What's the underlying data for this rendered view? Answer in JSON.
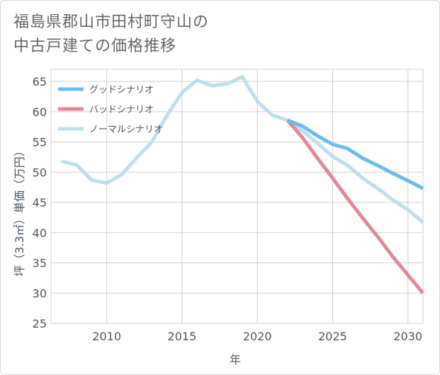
{
  "title": {
    "line1": "福島県郡山市田村町守山の",
    "line2": "中古戸建ての価格推移"
  },
  "chart_data": {
    "type": "line",
    "xlabel": "年",
    "ylabel": "坪（3.3㎡）単価（万円）",
    "xlim": [
      2006.3,
      2031
    ],
    "ylim": [
      25,
      67
    ],
    "xticks": [
      2010,
      2015,
      2020,
      2025,
      2030
    ],
    "yticks": [
      25,
      30,
      35,
      40,
      45,
      50,
      55,
      60,
      65
    ],
    "grid": true,
    "legend_position": "top-left",
    "series": [
      {
        "name": "グッドシナリオ",
        "color": "#6bbcec",
        "points": [
          [
            2022,
            58.6
          ],
          [
            2023,
            57.6
          ],
          [
            2024,
            56.0
          ],
          [
            2025,
            54.6
          ],
          [
            2026,
            53.9
          ],
          [
            2027,
            52.3
          ],
          [
            2028,
            51.1
          ],
          [
            2029,
            49.8
          ],
          [
            2030,
            48.6
          ],
          [
            2031,
            47.3
          ]
        ]
      },
      {
        "name": "バッドシナリオ",
        "color": "#e08a94",
        "points": [
          [
            2022,
            58.6
          ],
          [
            2023,
            55.7
          ],
          [
            2024,
            52.3
          ],
          [
            2025,
            49.0
          ],
          [
            2026,
            45.6
          ],
          [
            2027,
            42.4
          ],
          [
            2028,
            39.3
          ],
          [
            2029,
            36.0
          ],
          [
            2030,
            33.0
          ],
          [
            2031,
            30.0
          ]
        ]
      },
      {
        "name": "ノーマルシナリオ",
        "color": "#bde0ee",
        "points": [
          [
            2007,
            51.8
          ],
          [
            2008,
            51.2
          ],
          [
            2009,
            48.7
          ],
          [
            2010,
            48.2
          ],
          [
            2011,
            49.6
          ],
          [
            2012,
            52.4
          ],
          [
            2013,
            55.0
          ],
          [
            2014,
            59.4
          ],
          [
            2015,
            63.2
          ],
          [
            2016,
            65.2
          ],
          [
            2017,
            64.3
          ],
          [
            2018,
            64.6
          ],
          [
            2019,
            65.8
          ],
          [
            2020,
            61.7
          ],
          [
            2021,
            59.4
          ],
          [
            2022,
            58.6
          ],
          [
            2023,
            56.8
          ],
          [
            2024,
            54.8
          ],
          [
            2025,
            52.6
          ],
          [
            2026,
            51.1
          ],
          [
            2027,
            49.0
          ],
          [
            2028,
            47.3
          ],
          [
            2029,
            45.4
          ],
          [
            2030,
            43.8
          ],
          [
            2031,
            41.7
          ]
        ]
      }
    ]
  }
}
